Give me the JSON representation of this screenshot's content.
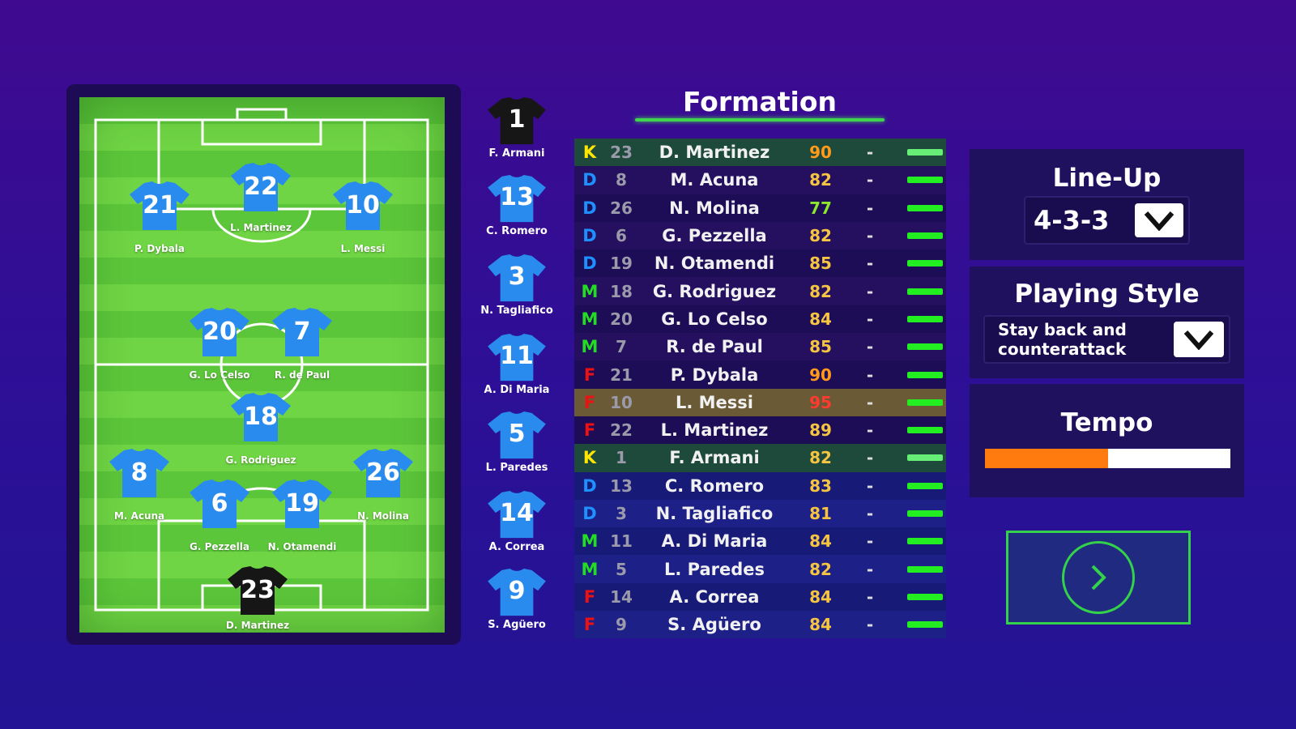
{
  "title": "Formation",
  "colors": {
    "K": "#ffe600",
    "D": "#1e90ff",
    "M": "#22dd22",
    "F": "#ee1111",
    "shirt_outfield": "#2a8bee",
    "shirt_keeper": "#161616",
    "accent_green": "#33d24a",
    "tempo_fill": "#ff7a0f"
  },
  "pitch_players": [
    {
      "number": "21",
      "name": "P. Dybala",
      "keeper": false
    },
    {
      "number": "22",
      "name": "L. Martinez",
      "keeper": false
    },
    {
      "number": "10",
      "name": "L. Messi",
      "keeper": false
    },
    {
      "number": "20",
      "name": "G. Lo Celso",
      "keeper": false
    },
    {
      "number": "7",
      "name": "R. de Paul",
      "keeper": false
    },
    {
      "number": "18",
      "name": "G. Rodriguez",
      "keeper": false
    },
    {
      "number": "8",
      "name": "M. Acuna",
      "keeper": false
    },
    {
      "number": "26",
      "name": "N. Molina",
      "keeper": false
    },
    {
      "number": "6",
      "name": "G. Pezzella",
      "keeper": false
    },
    {
      "number": "19",
      "name": "N. Otamendi",
      "keeper": false
    },
    {
      "number": "23",
      "name": "D. Martinez",
      "keeper": true
    }
  ],
  "bench": [
    {
      "number": "1",
      "name": "F. Armani",
      "keeper": true
    },
    {
      "number": "13",
      "name": "C. Romero",
      "keeper": false
    },
    {
      "number": "3",
      "name": "N. Tagliafico",
      "keeper": false
    },
    {
      "number": "11",
      "name": "A. Di Maria",
      "keeper": false
    },
    {
      "number": "5",
      "name": "L. Paredes",
      "keeper": false
    },
    {
      "number": "14",
      "name": "A. Correa",
      "keeper": false
    },
    {
      "number": "9",
      "name": "S. Agüero",
      "keeper": false
    }
  ],
  "squad": [
    {
      "pos": "K",
      "number": "23",
      "name": "D. Martinez",
      "rating": "90",
      "rating_color": "#ff9a1a",
      "status": "-",
      "stamina": 1,
      "state": "gk"
    },
    {
      "pos": "D",
      "number": "8",
      "name": "M. Acuna",
      "rating": "82",
      "rating_color": "#f5c542",
      "status": "-",
      "stamina": 1,
      "state": ""
    },
    {
      "pos": "D",
      "number": "26",
      "name": "N. Molina",
      "rating": "77",
      "rating_color": "#8ee82a",
      "status": "-",
      "stamina": 1,
      "state": ""
    },
    {
      "pos": "D",
      "number": "6",
      "name": "G. Pezzella",
      "rating": "82",
      "rating_color": "#f5c542",
      "status": "-",
      "stamina": 1,
      "state": ""
    },
    {
      "pos": "D",
      "number": "19",
      "name": "N. Otamendi",
      "rating": "85",
      "rating_color": "#f5c542",
      "status": "-",
      "stamina": 1,
      "state": ""
    },
    {
      "pos": "M",
      "number": "18",
      "name": "G. Rodriguez",
      "rating": "82",
      "rating_color": "#f5c542",
      "status": "-",
      "stamina": 1,
      "state": ""
    },
    {
      "pos": "M",
      "number": "20",
      "name": "G. Lo Celso",
      "rating": "84",
      "rating_color": "#f5c542",
      "status": "-",
      "stamina": 1,
      "state": ""
    },
    {
      "pos": "M",
      "number": "7",
      "name": "R. de Paul",
      "rating": "85",
      "rating_color": "#f5c542",
      "status": "-",
      "stamina": 1,
      "state": ""
    },
    {
      "pos": "F",
      "number": "21",
      "name": "P. Dybala",
      "rating": "90",
      "rating_color": "#ff9a1a",
      "status": "-",
      "stamina": 1,
      "state": ""
    },
    {
      "pos": "F",
      "number": "10",
      "name": "L. Messi",
      "rating": "95",
      "rating_color": "#ff3b30",
      "status": "-",
      "stamina": 1,
      "state": "sel"
    },
    {
      "pos": "F",
      "number": "22",
      "name": "L. Martinez",
      "rating": "89",
      "rating_color": "#f5c542",
      "status": "-",
      "stamina": 1,
      "state": ""
    },
    {
      "pos": "K",
      "number": "1",
      "name": "F. Armani",
      "rating": "82",
      "rating_color": "#f5c542",
      "status": "-",
      "stamina": 1,
      "state": "gk sub"
    },
    {
      "pos": "D",
      "number": "13",
      "name": "C. Romero",
      "rating": "83",
      "rating_color": "#f5c542",
      "status": "-",
      "stamina": 1,
      "state": "sub"
    },
    {
      "pos": "D",
      "number": "3",
      "name": "N. Tagliafico",
      "rating": "81",
      "rating_color": "#f5c542",
      "status": "-",
      "stamina": 1,
      "state": "sub"
    },
    {
      "pos": "M",
      "number": "11",
      "name": "A. Di Maria",
      "rating": "84",
      "rating_color": "#f5c542",
      "status": "-",
      "stamina": 1,
      "state": "sub"
    },
    {
      "pos": "M",
      "number": "5",
      "name": "L. Paredes",
      "rating": "82",
      "rating_color": "#f5c542",
      "status": "-",
      "stamina": 1,
      "state": "sub"
    },
    {
      "pos": "F",
      "number": "14",
      "name": "A. Correa",
      "rating": "84",
      "rating_color": "#f5c542",
      "status": "-",
      "stamina": 1,
      "state": "sub"
    },
    {
      "pos": "F",
      "number": "9",
      "name": "S. Agüero",
      "rating": "84",
      "rating_color": "#f5c542",
      "status": "-",
      "stamina": 1,
      "state": "sub"
    }
  ],
  "lineup": {
    "title": "Line-Up",
    "value": "4-3-3",
    "icon": "chevron-down-icon"
  },
  "playing_style": {
    "title": "Playing Style",
    "value": "Stay back and counterattack",
    "icon": "chevron-down-icon"
  },
  "tempo": {
    "title": "Tempo",
    "level": 0.5
  },
  "next_button": {
    "icon": "chevron-right-icon"
  }
}
